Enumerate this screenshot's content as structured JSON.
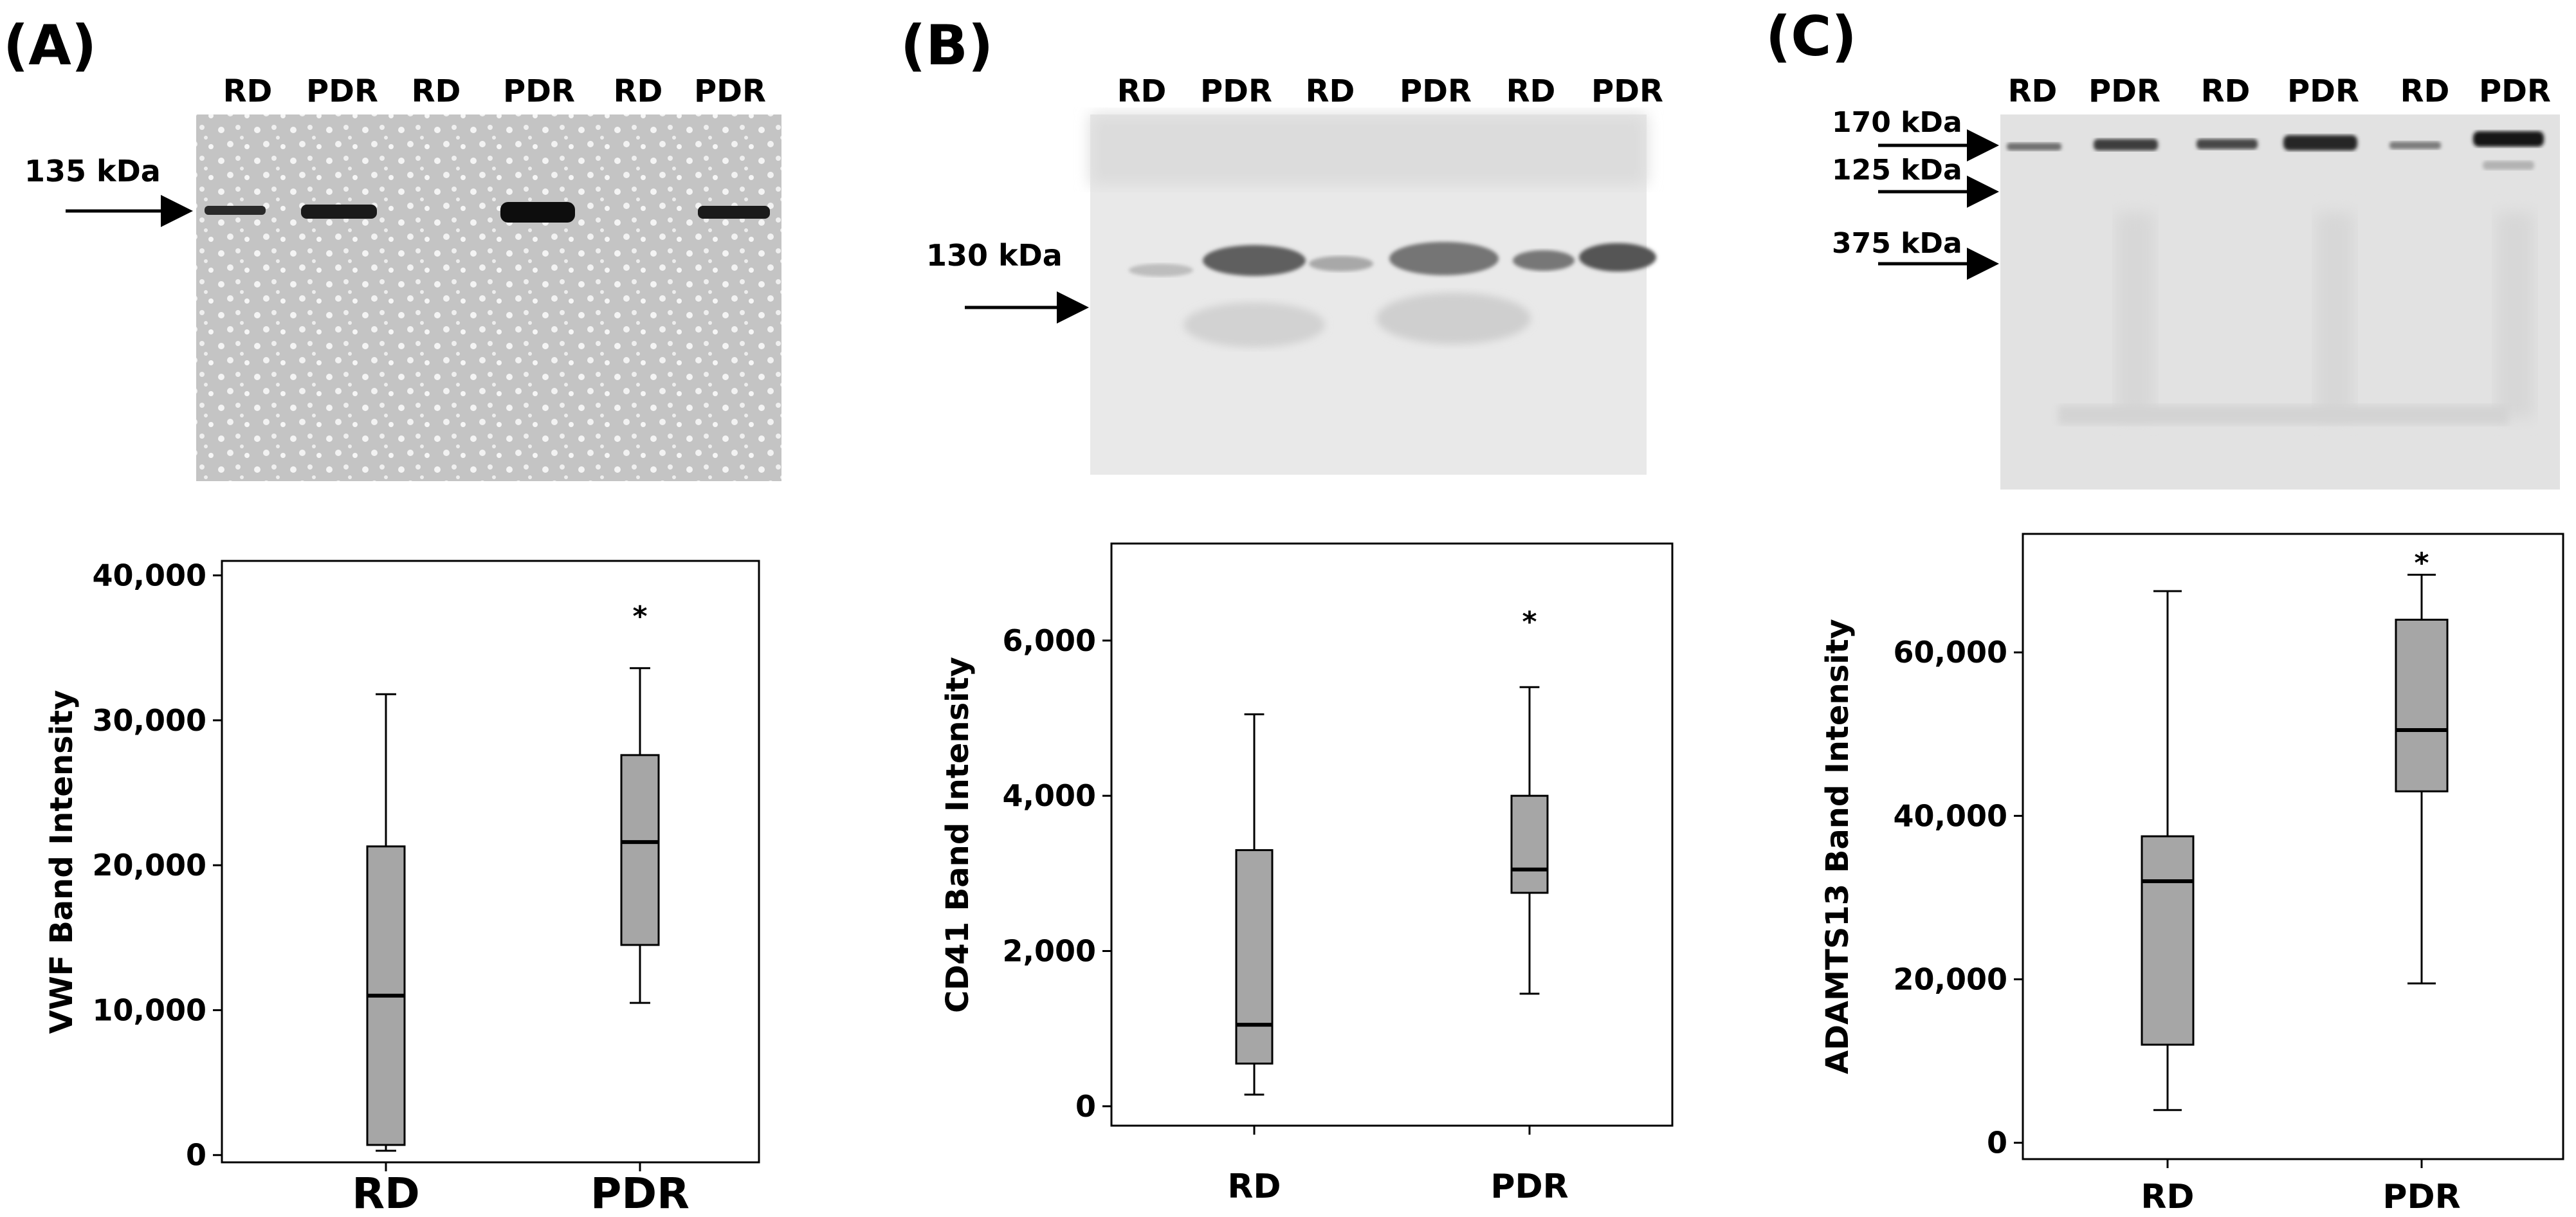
{
  "panels": [
    {
      "letter": "(A)",
      "lanes": [
        "RD",
        "PDR",
        "RD",
        "PDR",
        "RD",
        "PDR"
      ],
      "markers": [
        "135 kDa"
      ]
    },
    {
      "letter": "(B)",
      "lanes": [
        "RD",
        "PDR",
        "RD",
        "PDR",
        "RD",
        "PDR"
      ],
      "markers": [
        "130 kDa"
      ]
    },
    {
      "letter": "(C)",
      "lanes": [
        "RD",
        "PDR",
        "RD",
        "PDR",
        "RD",
        "PDR"
      ],
      "markers": [
        "170 kDa",
        "125 kDa",
        "375 kDa"
      ]
    }
  ],
  "colors": {
    "box_fill": "#a6a6a6",
    "blot_A": "#c4c4c4",
    "blot_B": "#e9e9e9",
    "blot_C": "#e2e2e2"
  },
  "chart_data": [
    {
      "type": "box",
      "title": "",
      "xlabel": "",
      "ylabel": "VWF Band Intensity",
      "categories": [
        "RD",
        "PDR"
      ],
      "ylim": [
        -500,
        41000
      ],
      "yticks": [
        0,
        10000,
        20000,
        30000,
        40000
      ],
      "ytick_labels": [
        "0",
        "10,000",
        "20,000",
        "30,000",
        "40,000"
      ],
      "boxes": [
        {
          "category": "RD",
          "min": 300,
          "q1": 700,
          "median": 11000,
          "q3": 21300,
          "max": 31800
        },
        {
          "category": "PDR",
          "min": 10500,
          "q1": 14500,
          "median": 21600,
          "q3": 27600,
          "max": 33600
        }
      ],
      "annotations": [
        {
          "category": "PDR",
          "text": "*",
          "y": 37500
        }
      ]
    },
    {
      "type": "box",
      "title": "",
      "xlabel": "",
      "ylabel": "CD41 Band Intensity",
      "categories": [
        "RD",
        "PDR"
      ],
      "ylim": [
        -250,
        7250
      ],
      "yticks": [
        0,
        2000,
        4000,
        6000
      ],
      "ytick_labels": [
        "0",
        "2,000",
        "4,000",
        "6,000"
      ],
      "boxes": [
        {
          "category": "RD",
          "min": 150,
          "q1": 550,
          "median": 1050,
          "q3": 3300,
          "max": 5050
        },
        {
          "category": "PDR",
          "min": 1450,
          "q1": 2750,
          "median": 3050,
          "q3": 4000,
          "max": 5400
        }
      ],
      "annotations": [
        {
          "category": "PDR",
          "text": "*",
          "y": 6300
        }
      ]
    },
    {
      "type": "box",
      "title": "",
      "xlabel": "",
      "ylabel": "ADAMTS13 Band Intensity",
      "categories": [
        "RD",
        "PDR"
      ],
      "ylim": [
        -2000,
        74500
      ],
      "yticks": [
        0,
        20000,
        40000,
        60000
      ],
      "ytick_labels": [
        "0",
        "20,000",
        "40,000",
        "60,000"
      ],
      "boxes": [
        {
          "category": "RD",
          "min": 4000,
          "q1": 12000,
          "median": 32000,
          "q3": 37500,
          "max": 67500
        },
        {
          "category": "PDR",
          "min": 19500,
          "q1": 43000,
          "median": 50500,
          "q3": 64000,
          "max": 69500
        }
      ],
      "annotations": [
        {
          "category": "PDR",
          "text": "*",
          "y": 71500
        }
      ]
    }
  ]
}
